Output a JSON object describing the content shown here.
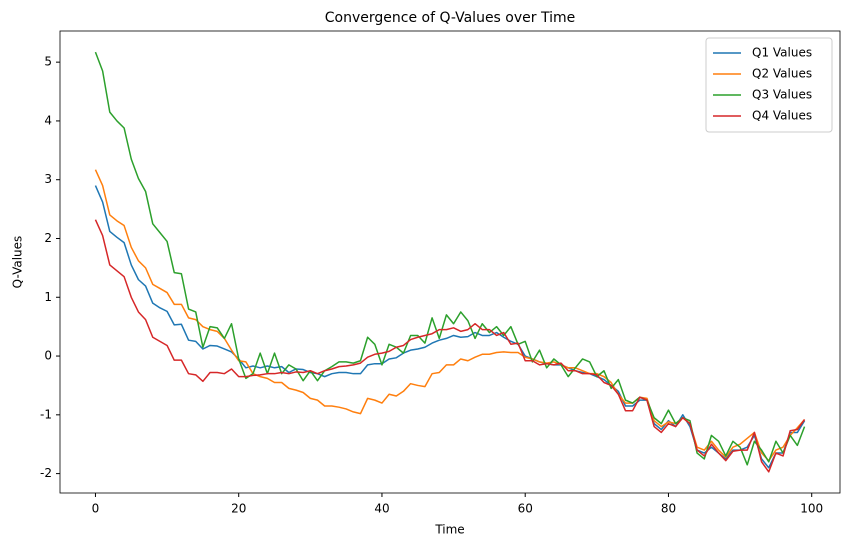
{
  "chart_data": {
    "type": "line",
    "title": "Convergence of Q-Values over Time",
    "x_label": "Time",
    "y_label": "Q-Values",
    "x": [
      0,
      1,
      2,
      3,
      4,
      5,
      6,
      7,
      8,
      9,
      10,
      11,
      12,
      13,
      14,
      15,
      16,
      17,
      18,
      19,
      20,
      21,
      22,
      23,
      24,
      25,
      26,
      27,
      28,
      29,
      30,
      31,
      32,
      33,
      34,
      35,
      36,
      37,
      38,
      39,
      40,
      41,
      42,
      43,
      44,
      45,
      46,
      47,
      48,
      49,
      50,
      51,
      52,
      53,
      54,
      55,
      56,
      57,
      58,
      59,
      60,
      61,
      62,
      63,
      64,
      65,
      66,
      67,
      68,
      69,
      70,
      71,
      72,
      73,
      74,
      75,
      76,
      77,
      78,
      79,
      80,
      81,
      82,
      83,
      84,
      85,
      86,
      87,
      88,
      89,
      90,
      91,
      92,
      93,
      94,
      95,
      96,
      97,
      98,
      99
    ],
    "series": [
      {
        "name": "Q1 Values",
        "color": "#1f77b4",
        "values": [
          2.9,
          2.62,
          2.12,
          2.02,
          1.93,
          1.55,
          1.3,
          1.19,
          0.9,
          0.82,
          0.76,
          0.53,
          0.54,
          0.27,
          0.25,
          0.12,
          0.18,
          0.17,
          0.12,
          0.07,
          -0.05,
          -0.2,
          -0.17,
          -0.2,
          -0.17,
          -0.2,
          -0.18,
          -0.28,
          -0.22,
          -0.23,
          -0.28,
          -0.3,
          -0.35,
          -0.3,
          -0.28,
          -0.28,
          -0.3,
          -0.3,
          -0.15,
          -0.13,
          -0.13,
          -0.05,
          -0.03,
          0.05,
          0.1,
          0.12,
          0.15,
          0.22,
          0.27,
          0.3,
          0.35,
          0.32,
          0.33,
          0.4,
          0.35,
          0.35,
          0.4,
          0.32,
          0.25,
          0.2,
          0.0,
          -0.05,
          -0.1,
          -0.13,
          -0.15,
          -0.15,
          -0.2,
          -0.25,
          -0.28,
          -0.3,
          -0.35,
          -0.4,
          -0.5,
          -0.6,
          -0.85,
          -0.85,
          -0.75,
          -0.75,
          -1.15,
          -1.25,
          -1.1,
          -1.2,
          -1.0,
          -1.2,
          -1.6,
          -1.65,
          -1.55,
          -1.65,
          -1.75,
          -1.6,
          -1.6,
          -1.55,
          -1.35,
          -1.75,
          -1.9,
          -1.65,
          -1.65,
          -1.3,
          -1.3,
          -1.1
        ]
      },
      {
        "name": "Q2 Values",
        "color": "#ff7f0e",
        "values": [
          3.17,
          2.9,
          2.4,
          2.3,
          2.22,
          1.85,
          1.62,
          1.5,
          1.22,
          1.15,
          1.08,
          0.88,
          0.88,
          0.65,
          0.62,
          0.5,
          0.45,
          0.42,
          0.3,
          0.1,
          -0.08,
          -0.1,
          -0.3,
          -0.35,
          -0.38,
          -0.45,
          -0.45,
          -0.55,
          -0.58,
          -0.62,
          -0.72,
          -0.75,
          -0.85,
          -0.85,
          -0.87,
          -0.9,
          -0.95,
          -0.98,
          -0.72,
          -0.75,
          -0.8,
          -0.65,
          -0.68,
          -0.6,
          -0.47,
          -0.5,
          -0.52,
          -0.3,
          -0.28,
          -0.15,
          -0.15,
          -0.05,
          -0.08,
          -0.02,
          0.03,
          0.03,
          0.06,
          0.07,
          0.06,
          0.06,
          -0.02,
          -0.05,
          -0.1,
          -0.12,
          -0.1,
          -0.15,
          -0.2,
          -0.2,
          -0.25,
          -0.3,
          -0.3,
          -0.35,
          -0.45,
          -0.65,
          -0.8,
          -0.8,
          -0.7,
          -0.72,
          -1.1,
          -1.2,
          -1.12,
          -1.15,
          -1.05,
          -1.15,
          -1.55,
          -1.6,
          -1.45,
          -1.6,
          -1.72,
          -1.55,
          -1.5,
          -1.4,
          -1.3,
          -1.65,
          -1.78,
          -1.6,
          -1.55,
          -1.35,
          -1.22,
          -1.08
        ]
      },
      {
        "name": "Q3 Values",
        "color": "#2ca02c",
        "values": [
          5.17,
          4.85,
          4.15,
          4.0,
          3.88,
          3.35,
          3.02,
          2.8,
          2.25,
          2.1,
          1.95,
          1.42,
          1.4,
          0.8,
          0.75,
          0.15,
          0.5,
          0.48,
          0.3,
          0.55,
          -0.05,
          -0.38,
          -0.3,
          0.05,
          -0.3,
          0.05,
          -0.3,
          -0.15,
          -0.22,
          -0.42,
          -0.25,
          -0.42,
          -0.25,
          -0.18,
          -0.1,
          -0.1,
          -0.12,
          -0.08,
          0.32,
          0.2,
          -0.15,
          0.2,
          0.15,
          0.05,
          0.35,
          0.35,
          0.22,
          0.65,
          0.3,
          0.7,
          0.55,
          0.75,
          0.6,
          0.3,
          0.55,
          0.4,
          0.5,
          0.35,
          0.5,
          0.2,
          0.25,
          -0.1,
          0.1,
          -0.2,
          -0.05,
          -0.15,
          -0.35,
          -0.2,
          -0.05,
          -0.1,
          -0.35,
          -0.25,
          -0.55,
          -0.4,
          -0.75,
          -0.8,
          -0.7,
          -0.75,
          -1.05,
          -1.15,
          -0.92,
          -1.15,
          -1.05,
          -1.1,
          -1.65,
          -1.75,
          -1.35,
          -1.45,
          -1.7,
          -1.45,
          -1.55,
          -1.85,
          -1.45,
          -1.6,
          -1.8,
          -1.45,
          -1.65,
          -1.35,
          -1.52,
          -1.2
        ]
      },
      {
        "name": "Q4 Values",
        "color": "#d62728",
        "values": [
          2.32,
          2.05,
          1.55,
          1.45,
          1.35,
          1.0,
          0.75,
          0.62,
          0.32,
          0.25,
          0.18,
          -0.07,
          -0.07,
          -0.3,
          -0.32,
          -0.43,
          -0.28,
          -0.28,
          -0.3,
          -0.22,
          -0.35,
          -0.35,
          -0.33,
          -0.32,
          -0.3,
          -0.3,
          -0.28,
          -0.3,
          -0.27,
          -0.28,
          -0.25,
          -0.3,
          -0.25,
          -0.22,
          -0.18,
          -0.17,
          -0.15,
          -0.12,
          -0.02,
          0.03,
          0.05,
          0.08,
          0.15,
          0.18,
          0.28,
          0.32,
          0.35,
          0.38,
          0.45,
          0.45,
          0.48,
          0.42,
          0.45,
          0.55,
          0.45,
          0.45,
          0.35,
          0.4,
          0.2,
          0.22,
          -0.08,
          -0.08,
          -0.15,
          -0.13,
          -0.15,
          -0.12,
          -0.25,
          -0.25,
          -0.3,
          -0.3,
          -0.32,
          -0.45,
          -0.5,
          -0.65,
          -0.93,
          -0.93,
          -0.7,
          -0.75,
          -1.2,
          -1.3,
          -1.15,
          -1.2,
          -1.05,
          -1.15,
          -1.6,
          -1.7,
          -1.5,
          -1.65,
          -1.78,
          -1.62,
          -1.6,
          -1.6,
          -1.3,
          -1.8,
          -1.97,
          -1.65,
          -1.7,
          -1.27,
          -1.25,
          -1.08
        ]
      }
    ],
    "xlim": [
      -4.95,
      103.95
    ],
    "xticks": [
      0,
      20,
      40,
      60,
      80,
      100
    ],
    "ylim": [
      -2.33,
      5.53
    ],
    "yticks": [
      -2,
      -1,
      0,
      1,
      2,
      3,
      4,
      5
    ],
    "legend": "upper right"
  }
}
